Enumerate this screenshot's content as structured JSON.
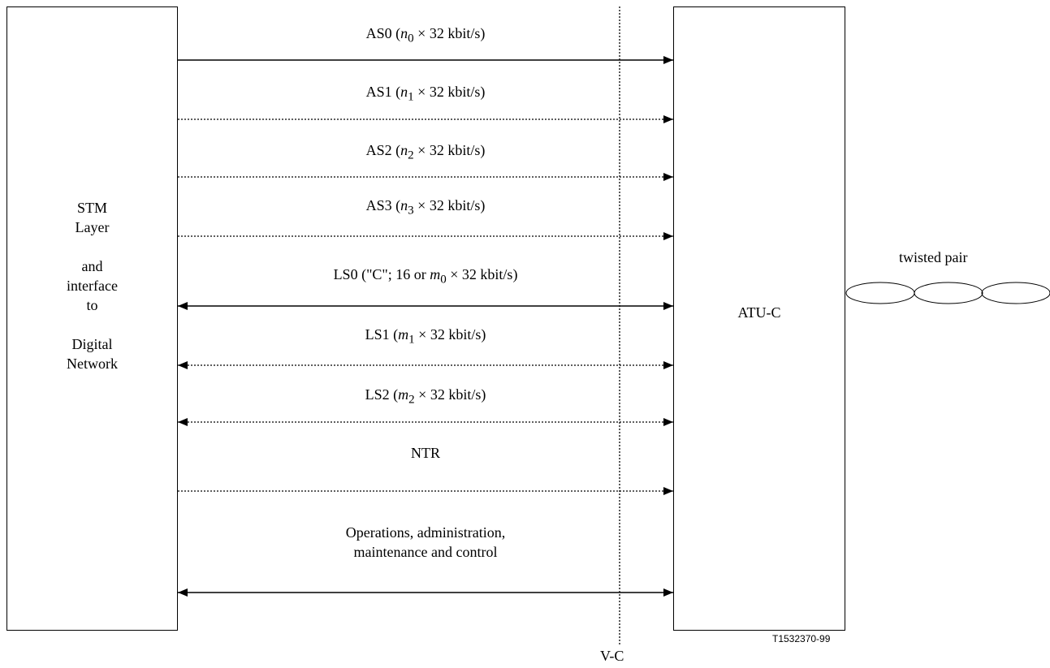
{
  "left_block": {
    "lines": [
      "STM",
      "Layer",
      "",
      "and",
      "interface",
      "to",
      "",
      "Digital",
      "Network"
    ]
  },
  "right_block": {
    "label": "ATU-C"
  },
  "interface": {
    "label": "V-C"
  },
  "line": {
    "label": "twisted pair"
  },
  "figure_id": "T1532370-99",
  "channels": [
    {
      "id": "as0",
      "name": "AS0",
      "symbol": "n",
      "sub": "0",
      "suffix": " × 32 kbit/s)",
      "style": "solid",
      "direction": "one-way"
    },
    {
      "id": "as1",
      "name": "AS1",
      "symbol": "n",
      "sub": "1",
      "suffix": " × 32 kbit/s)",
      "style": "dotted",
      "direction": "one-way"
    },
    {
      "id": "as2",
      "name": "AS2",
      "symbol": "n",
      "sub": "2",
      "suffix": " × 32 kbit/s)",
      "style": "dotted",
      "direction": "one-way"
    },
    {
      "id": "as3",
      "name": "AS3",
      "symbol": "n",
      "sub": "3",
      "suffix": " × 32 kbit/s)",
      "style": "dotted",
      "direction": "one-way"
    },
    {
      "id": "ls0",
      "name": "LS0",
      "prefix_extra": "\"C\"; 16 or ",
      "symbol": "m",
      "sub": "0",
      "suffix": " × 32 kbit/s)",
      "style": "solid",
      "direction": "two-way"
    },
    {
      "id": "ls1",
      "name": "LS1",
      "symbol": "m",
      "sub": "1",
      "suffix": " × 32 kbit/s)",
      "style": "dotted",
      "direction": "two-way"
    },
    {
      "id": "ls2",
      "name": "LS2",
      "symbol": "m",
      "sub": "2",
      "suffix": " × 32 kbit/s)",
      "style": "dotted",
      "direction": "two-way"
    },
    {
      "id": "ntr",
      "name": "NTR",
      "style": "dotted",
      "direction": "one-way"
    },
    {
      "id": "oamc",
      "lines": [
        "Operations, administration,",
        "maintenance and control"
      ],
      "style": "solid",
      "direction": "two-way"
    }
  ]
}
